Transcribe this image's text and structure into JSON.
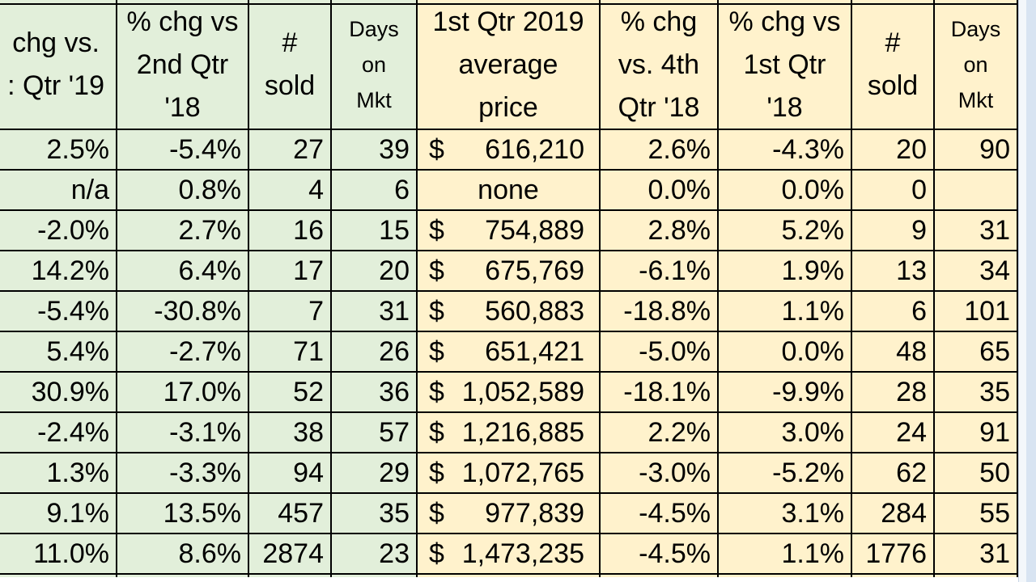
{
  "headers": [
    "chg vs.\n: Qtr '19",
    "% chg vs\n2nd Qtr\n'18",
    "#\nsold",
    "Days\non\nMkt",
    "1st Qtr 2019\naverage\nprice",
    "% chg\nvs. 4th\nQtr '18",
    "% chg vs\n1st Qtr\n'18",
    "#\nsold",
    "Days\non\nMkt"
  ],
  "rows": [
    {
      "c0": "2.5%",
      "c1": "-5.4%",
      "c2": "27",
      "c3": "39",
      "c4_dollar": "$",
      "c4": "616,210",
      "c5": "2.6%",
      "c6": "-4.3%",
      "c7": "20",
      "c8": "90"
    },
    {
      "c0": "n/a",
      "c1": "0.8%",
      "c2": "4",
      "c3": "6",
      "c4_dollar": "",
      "c4": "none",
      "c5": "0.0%",
      "c6": "0.0%",
      "c7": "0",
      "c8": ""
    },
    {
      "c0": "-2.0%",
      "c1": "2.7%",
      "c2": "16",
      "c3": "15",
      "c4_dollar": "$",
      "c4": "754,889",
      "c5": "2.8%",
      "c6": "5.2%",
      "c7": "9",
      "c8": "31"
    },
    {
      "c0": "14.2%",
      "c1": "6.4%",
      "c2": "17",
      "c3": "20",
      "c4_dollar": "$",
      "c4": "675,769",
      "c5": "-6.1%",
      "c6": "1.9%",
      "c7": "13",
      "c8": "34"
    },
    {
      "c0": "-5.4%",
      "c1": "-30.8%",
      "c2": "7",
      "c3": "31",
      "c4_dollar": "$",
      "c4": "560,883",
      "c5": "-18.8%",
      "c6": "1.1%",
      "c7": "6",
      "c8": "101"
    },
    {
      "c0": "5.4%",
      "c1": "-2.7%",
      "c2": "71",
      "c3": "26",
      "c4_dollar": "$",
      "c4": "651,421",
      "c5": "-5.0%",
      "c6": "0.0%",
      "c7": "48",
      "c8": "65"
    },
    {
      "c0": "30.9%",
      "c1": "17.0%",
      "c2": "52",
      "c3": "36",
      "c4_dollar": "$",
      "c4": "1,052,589",
      "c5": "-18.1%",
      "c6": "-9.9%",
      "c7": "28",
      "c8": "35"
    },
    {
      "c0": "-2.4%",
      "c1": "-3.1%",
      "c2": "38",
      "c3": "57",
      "c4_dollar": "$",
      "c4": "1,216,885",
      "c5": "2.2%",
      "c6": "3.0%",
      "c7": "24",
      "c8": "91"
    },
    {
      "c0": "1.3%",
      "c1": "-3.3%",
      "c2": "94",
      "c3": "29",
      "c4_dollar": "$",
      "c4": "1,072,765",
      "c5": "-3.0%",
      "c6": "-5.2%",
      "c7": "62",
      "c8": "50"
    },
    {
      "c0": "9.1%",
      "c1": "13.5%",
      "c2": "457",
      "c3": "35",
      "c4_dollar": "$",
      "c4": "977,839",
      "c5": "-4.5%",
      "c6": "3.1%",
      "c7": "284",
      "c8": "55"
    },
    {
      "c0": "11.0%",
      "c1": "8.6%",
      "c2": "2874",
      "c3": "23",
      "c4_dollar": "$",
      "c4": "1,473,235",
      "c5": "-4.5%",
      "c6": "1.1%",
      "c7": "1776",
      "c8": "31"
    }
  ],
  "colors": {
    "green_fill": "#e2efda",
    "cream_fill": "#fff2cc",
    "grid": "#000000"
  }
}
